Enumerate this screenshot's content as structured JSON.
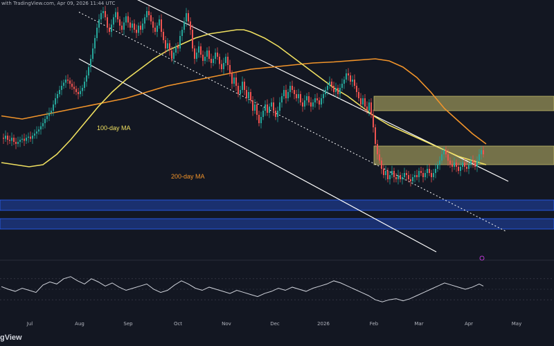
{
  "header": {
    "credit": "with TradingView.com, Apr 09, 2026 11:44 UTC"
  },
  "branding": {
    "text": "gView"
  },
  "colors": {
    "background": "#131722",
    "up": "#26a69a",
    "down": "#ef5350",
    "ma100": "#f0e060",
    "ma200": "#f2942a",
    "channel": "#ffffff",
    "supply": "#eae07a",
    "demand": "#2962ff",
    "rsi": "#d1d4dc",
    "axis_text": "#b2b5be"
  },
  "annotations": {
    "ma100_label": "100-day MA",
    "ma200_label": "200-day MA"
  },
  "chart_data": {
    "type": "candlestick",
    "title": "",
    "xlabel": "",
    "ylabel": "",
    "grid": false,
    "x_ticks": [
      "Jul",
      "Aug",
      "Sep",
      "Oct",
      "Nov",
      "Dec",
      "2026",
      "Feb",
      "Mar",
      "Apr",
      "May"
    ],
    "price_path": [
      [
        0,
        74
      ],
      [
        3,
        73
      ],
      [
        6,
        76
      ],
      [
        9,
        72
      ],
      [
        12,
        71
      ],
      [
        15,
        74
      ],
      [
        18,
        70
      ],
      [
        21,
        68
      ],
      [
        24,
        70
      ],
      [
        27,
        72
      ],
      [
        30,
        73
      ],
      [
        33,
        71
      ],
      [
        36,
        74
      ],
      [
        39,
        75
      ],
      [
        42,
        73
      ],
      [
        45,
        76
      ],
      [
        48,
        78
      ],
      [
        51,
        80
      ],
      [
        54,
        82
      ],
      [
        57,
        85
      ],
      [
        60,
        88
      ],
      [
        63,
        92
      ],
      [
        66,
        95
      ],
      [
        69,
        98
      ],
      [
        72,
        100
      ],
      [
        75,
        106
      ],
      [
        78,
        112
      ],
      [
        81,
        116
      ],
      [
        84,
        120
      ],
      [
        87,
        124
      ],
      [
        90,
        127
      ],
      [
        93,
        130
      ],
      [
        96,
        129
      ],
      [
        99,
        126
      ],
      [
        102,
        123
      ],
      [
        105,
        121
      ],
      [
        108,
        118
      ],
      [
        111,
        116
      ],
      [
        114,
        119
      ],
      [
        117,
        122
      ],
      [
        120,
        128
      ],
      [
        123,
        134
      ],
      [
        126,
        142
      ],
      [
        129,
        150
      ],
      [
        132,
        160
      ],
      [
        135,
        170
      ],
      [
        138,
        180
      ],
      [
        141,
        188
      ],
      [
        144,
        194
      ],
      [
        147,
        196
      ],
      [
        150,
        190
      ],
      [
        153,
        180
      ],
      [
        156,
        176
      ],
      [
        159,
        183
      ],
      [
        162,
        190
      ],
      [
        165,
        195
      ],
      [
        168,
        188
      ],
      [
        171,
        182
      ],
      [
        174,
        178
      ],
      [
        177,
        185
      ],
      [
        180,
        191
      ],
      [
        183,
        185
      ],
      [
        186,
        180
      ],
      [
        189,
        184
      ],
      [
        192,
        178
      ],
      [
        195,
        175
      ],
      [
        198,
        182
      ],
      [
        201,
        178
      ],
      [
        204,
        184
      ],
      [
        207,
        190
      ],
      [
        210,
        196
      ],
      [
        213,
        192
      ],
      [
        216,
        186
      ],
      [
        219,
        180
      ],
      [
        222,
        176
      ],
      [
        225,
        182
      ],
      [
        228,
        188
      ],
      [
        231,
        176
      ],
      [
        234,
        168
      ],
      [
        237,
        160
      ],
      [
        240,
        165
      ],
      [
        243,
        158
      ],
      [
        246,
        150
      ],
      [
        249,
        156
      ],
      [
        252,
        162
      ],
      [
        255,
        160
      ],
      [
        258,
        172
      ],
      [
        261,
        178
      ],
      [
        264,
        186
      ],
      [
        267,
        194
      ],
      [
        270,
        186
      ],
      [
        273,
        178
      ],
      [
        276,
        160
      ],
      [
        279,
        150
      ],
      [
        282,
        156
      ],
      [
        285,
        162
      ],
      [
        288,
        154
      ],
      [
        291,
        148
      ],
      [
        294,
        152
      ],
      [
        297,
        158
      ],
      [
        300,
        150
      ],
      [
        303,
        146
      ],
      [
        306,
        150
      ],
      [
        309,
        156
      ],
      [
        312,
        152
      ],
      [
        315,
        145
      ],
      [
        318,
        140
      ],
      [
        321,
        146
      ],
      [
        324,
        152
      ],
      [
        327,
        144
      ],
      [
        330,
        136
      ],
      [
        333,
        126
      ],
      [
        336,
        132
      ],
      [
        339,
        124
      ],
      [
        342,
        116
      ],
      [
        345,
        120
      ],
      [
        348,
        128
      ],
      [
        351,
        120
      ],
      [
        354,
        112
      ],
      [
        357,
        118
      ],
      [
        360,
        110
      ],
      [
        363,
        100
      ],
      [
        366,
        106
      ],
      [
        369,
        96
      ],
      [
        372,
        88
      ],
      [
        375,
        94
      ],
      [
        378,
        100
      ],
      [
        381,
        106
      ],
      [
        384,
        98
      ],
      [
        387,
        104
      ],
      [
        390,
        108
      ],
      [
        393,
        100
      ],
      [
        396,
        94
      ],
      [
        399,
        100
      ],
      [
        402,
        108
      ],
      [
        405,
        114
      ],
      [
        408,
        120
      ],
      [
        411,
        112
      ],
      [
        414,
        118
      ],
      [
        417,
        124
      ],
      [
        420,
        120
      ],
      [
        423,
        116
      ],
      [
        426,
        112
      ],
      [
        429,
        116
      ],
      [
        432,
        108
      ],
      [
        435,
        104
      ],
      [
        438,
        110
      ],
      [
        441,
        114
      ],
      [
        444,
        108
      ],
      [
        447,
        104
      ],
      [
        450,
        108
      ],
      [
        453,
        112
      ],
      [
        456,
        110
      ],
      [
        459,
        106
      ],
      [
        462,
        112
      ],
      [
        465,
        116
      ],
      [
        468,
        120
      ],
      [
        471,
        124
      ],
      [
        474,
        128
      ],
      [
        477,
        124
      ],
      [
        480,
        118
      ],
      [
        483,
        122
      ],
      [
        486,
        116
      ],
      [
        489,
        122
      ],
      [
        492,
        126
      ],
      [
        495,
        130
      ],
      [
        498,
        136
      ],
      [
        501,
        134
      ],
      [
        504,
        128
      ],
      [
        507,
        130
      ],
      [
        510,
        124
      ],
      [
        513,
        118
      ],
      [
        516,
        112
      ],
      [
        519,
        106
      ],
      [
        522,
        112
      ],
      [
        525,
        104
      ],
      [
        528,
        100
      ],
      [
        531,
        108
      ],
      [
        534,
        96
      ],
      [
        537,
        84
      ],
      [
        540,
        68
      ],
      [
        543,
        58
      ],
      [
        546,
        52
      ],
      [
        549,
        44
      ],
      [
        552,
        38
      ],
      [
        555,
        42
      ],
      [
        558,
        34
      ],
      [
        561,
        38
      ],
      [
        564,
        42
      ],
      [
        567,
        36
      ],
      [
        570,
        34
      ],
      [
        573,
        38
      ],
      [
        576,
        34
      ],
      [
        579,
        36
      ],
      [
        582,
        40
      ],
      [
        585,
        38
      ],
      [
        588,
        34
      ],
      [
        591,
        32
      ],
      [
        594,
        36
      ],
      [
        597,
        38
      ],
      [
        600,
        36
      ],
      [
        603,
        42
      ],
      [
        606,
        40
      ],
      [
        609,
        36
      ],
      [
        612,
        40
      ],
      [
        615,
        44
      ],
      [
        618,
        40
      ],
      [
        621,
        36
      ],
      [
        624,
        40
      ],
      [
        627,
        44
      ],
      [
        630,
        48
      ],
      [
        633,
        52
      ],
      [
        636,
        58
      ],
      [
        639,
        62
      ],
      [
        642,
        58
      ],
      [
        645,
        52
      ],
      [
        648,
        48
      ],
      [
        651,
        46
      ],
      [
        654,
        50
      ],
      [
        657,
        46
      ],
      [
        660,
        42
      ],
      [
        663,
        46
      ],
      [
        666,
        50
      ],
      [
        669,
        46
      ],
      [
        672,
        44
      ],
      [
        675,
        48
      ],
      [
        678,
        52
      ],
      [
        681,
        50
      ],
      [
        684,
        46
      ],
      [
        687,
        52
      ],
      [
        690,
        58
      ],
      [
        693,
        62
      ],
      [
        696,
        58
      ]
    ],
    "ma100": [
      [
        0,
        50
      ],
      [
        20,
        48
      ],
      [
        40,
        46
      ],
      [
        60,
        48
      ],
      [
        80,
        58
      ],
      [
        100,
        72
      ],
      [
        120,
        88
      ],
      [
        140,
        104
      ],
      [
        160,
        118
      ],
      [
        180,
        130
      ],
      [
        200,
        140
      ],
      [
        220,
        150
      ],
      [
        240,
        158
      ],
      [
        260,
        164
      ],
      [
        280,
        170
      ],
      [
        300,
        174
      ],
      [
        320,
        176
      ],
      [
        340,
        178
      ],
      [
        350,
        178
      ],
      [
        360,
        176
      ],
      [
        380,
        170
      ],
      [
        400,
        162
      ],
      [
        420,
        152
      ],
      [
        440,
        142
      ],
      [
        460,
        132
      ],
      [
        480,
        122
      ],
      [
        500,
        114
      ],
      [
        520,
        104
      ],
      [
        540,
        94
      ],
      [
        560,
        86
      ],
      [
        580,
        80
      ],
      [
        600,
        74
      ],
      [
        620,
        68
      ],
      [
        640,
        62
      ],
      [
        660,
        56
      ],
      [
        680,
        52
      ],
      [
        700,
        48
      ]
    ],
    "ma200": [
      [
        0,
        95
      ],
      [
        30,
        92
      ],
      [
        60,
        96
      ],
      [
        90,
        100
      ],
      [
        120,
        104
      ],
      [
        150,
        108
      ],
      [
        180,
        112
      ],
      [
        210,
        118
      ],
      [
        240,
        124
      ],
      [
        270,
        128
      ],
      [
        300,
        132
      ],
      [
        330,
        136
      ],
      [
        360,
        140
      ],
      [
        390,
        142
      ],
      [
        420,
        144
      ],
      [
        450,
        146
      ],
      [
        480,
        147
      ],
      [
        500,
        148
      ],
      [
        520,
        149
      ],
      [
        540,
        150
      ],
      [
        560,
        148
      ],
      [
        580,
        142
      ],
      [
        600,
        132
      ],
      [
        620,
        118
      ],
      [
        640,
        102
      ],
      [
        660,
        90
      ],
      [
        680,
        78
      ],
      [
        700,
        68
      ]
    ],
    "channel": {
      "upper": [
        [
          126,
          230
        ],
        [
          732,
          32
        ]
      ],
      "middle": [
        [
          112,
          195
        ],
        [
          728,
          -16
        ]
      ],
      "lower": [
        [
          112,
          150
        ],
        [
          628,
          -36
        ]
      ]
    },
    "supply_zones": [
      [
        48,
        66
      ],
      [
        100,
        114
      ]
    ],
    "demand_zones": [
      [
        4,
        14
      ],
      [
        -14,
        -4
      ]
    ],
    "rsi": [
      [
        0,
        55
      ],
      [
        10,
        50
      ],
      [
        20,
        46
      ],
      [
        30,
        52
      ],
      [
        40,
        48
      ],
      [
        50,
        44
      ],
      [
        60,
        58
      ],
      [
        70,
        64
      ],
      [
        80,
        60
      ],
      [
        90,
        70
      ],
      [
        100,
        74
      ],
      [
        110,
        66
      ],
      [
        120,
        60
      ],
      [
        130,
        70
      ],
      [
        140,
        64
      ],
      [
        150,
        56
      ],
      [
        160,
        62
      ],
      [
        170,
        54
      ],
      [
        180,
        48
      ],
      [
        190,
        52
      ],
      [
        200,
        56
      ],
      [
        210,
        60
      ],
      [
        220,
        50
      ],
      [
        230,
        44
      ],
      [
        240,
        48
      ],
      [
        250,
        58
      ],
      [
        260,
        66
      ],
      [
        270,
        60
      ],
      [
        280,
        52
      ],
      [
        290,
        48
      ],
      [
        300,
        54
      ],
      [
        310,
        50
      ],
      [
        320,
        46
      ],
      [
        330,
        42
      ],
      [
        340,
        48
      ],
      [
        350,
        44
      ],
      [
        360,
        40
      ],
      [
        370,
        36
      ],
      [
        380,
        42
      ],
      [
        390,
        46
      ],
      [
        400,
        52
      ],
      [
        410,
        48
      ],
      [
        420,
        54
      ],
      [
        430,
        50
      ],
      [
        440,
        46
      ],
      [
        450,
        52
      ],
      [
        460,
        56
      ],
      [
        470,
        60
      ],
      [
        480,
        66
      ],
      [
        490,
        62
      ],
      [
        500,
        56
      ],
      [
        510,
        50
      ],
      [
        520,
        44
      ],
      [
        530,
        38
      ],
      [
        540,
        30
      ],
      [
        550,
        26
      ],
      [
        560,
        30
      ],
      [
        570,
        32
      ],
      [
        580,
        28
      ],
      [
        590,
        32
      ],
      [
        600,
        38
      ],
      [
        610,
        44
      ],
      [
        620,
        50
      ],
      [
        630,
        56
      ],
      [
        640,
        62
      ],
      [
        650,
        58
      ],
      [
        660,
        54
      ],
      [
        670,
        50
      ],
      [
        680,
        54
      ],
      [
        690,
        60
      ],
      [
        696,
        56
      ]
    ]
  }
}
